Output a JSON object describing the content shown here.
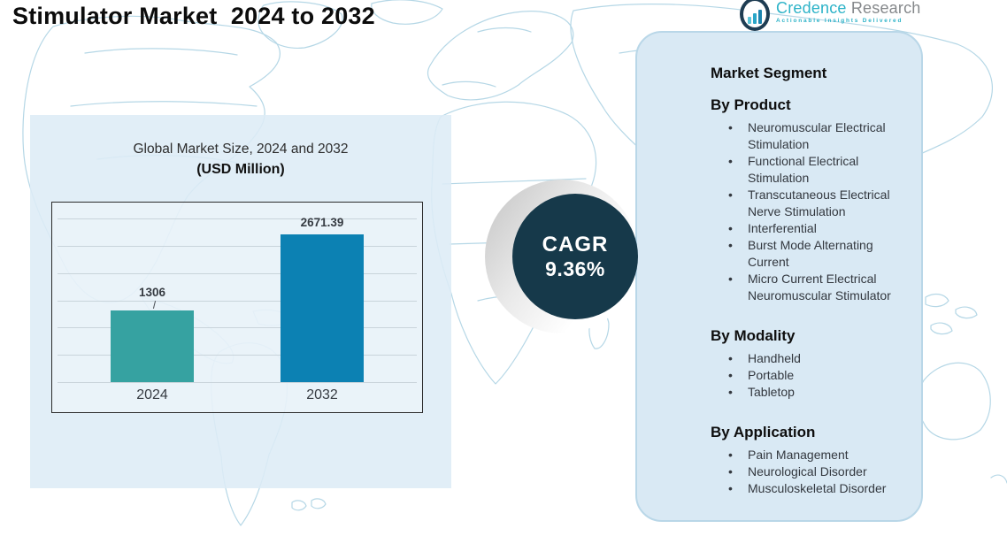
{
  "header": {
    "title": "Stimulator Market  2024 to 2032"
  },
  "logo": {
    "brand_primary": "Credence",
    "brand_secondary": "Research",
    "tagline": "Actionable Insights Delivered",
    "icon": "bar-chart-logo-icon"
  },
  "chart_data": {
    "type": "bar",
    "title": "Global Market Size, 2024 and 2032",
    "subtitle": "(USD Million)",
    "categories": [
      "2024",
      "2032"
    ],
    "values": [
      1306,
      2671.39
    ],
    "bar_colors": [
      "#36a2a1",
      "#0c81b3"
    ],
    "ylabel": "",
    "xlabel": "",
    "ylim": [
      0,
      3000
    ],
    "grid": true,
    "gridline_count": 7,
    "legend": "none"
  },
  "cagr": {
    "label": "CAGR",
    "value": "9.36%"
  },
  "panel": {
    "title": "Market Segment",
    "sections": [
      {
        "title": "By Product",
        "items": [
          "Neuromuscular Electrical Stimulation",
          "Functional Electrical Stimulation",
          "Transcutaneous Electrical Nerve Stimulation",
          "Interferential",
          "Burst Mode Alternating Current",
          "Micro Current Electrical Neuromuscular Stimulator"
        ]
      },
      {
        "title": "By Modality",
        "items": [
          "Handheld",
          "Portable",
          "Tabletop"
        ]
      },
      {
        "title": "By Application",
        "items": [
          "Pain Management",
          "Neurological Disorder",
          "Musculoskeletal Disorder"
        ]
      }
    ]
  },
  "colors": {
    "bar_2024": "#36a2a1",
    "bar_2032": "#0c81b3",
    "cagr_circle": "#16394a",
    "panel_background": "#d9e9f4",
    "chart_backdrop": "#ddecf6",
    "map_outline": "#b5d7e6",
    "brand_teal": "#2db3c8",
    "brand_gray": "#85888b"
  }
}
